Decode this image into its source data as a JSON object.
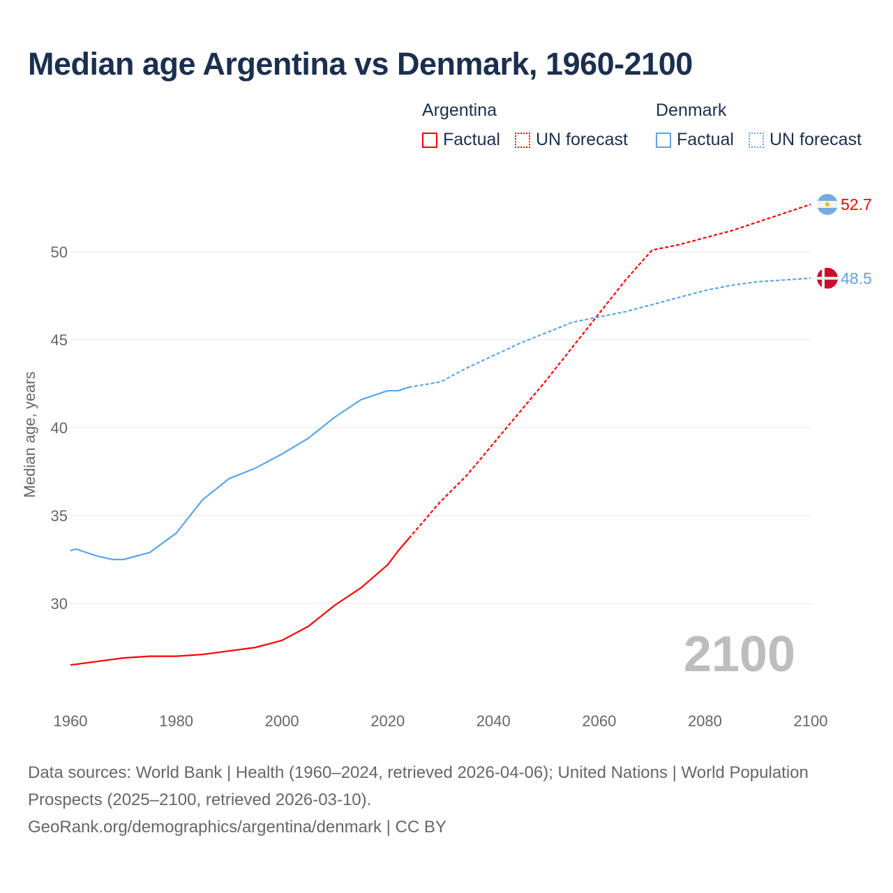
{
  "title": "Median age Argentina vs Denmark, 1960-2100",
  "legend": {
    "groups": [
      {
        "name": "Argentina",
        "color": "#ff0000",
        "factual": "Factual",
        "forecast": "UN forecast"
      },
      {
        "name": "Denmark",
        "color": "#5ba4ea",
        "factual": "Factual",
        "forecast": "UN forecast"
      }
    ]
  },
  "year_watermark": "2100",
  "footer": {
    "line1": "Data sources: World Bank | Health (1960–2024, retrieved 2026-04-06); United Nations | World Population Prospects (2025–2100, retrieved 2026-03-10).",
    "line2": "GeoRank.org/demographics/argentina/denmark | CC BY"
  },
  "chart_data": {
    "type": "line",
    "title": "Median age Argentina vs Denmark, 1960-2100",
    "xlabel": "",
    "ylabel": "Median age, years",
    "xlim": [
      1960,
      2100
    ],
    "ylim": [
      25,
      54.5
    ],
    "xticks": [
      "1960",
      "1980",
      "2000",
      "2020",
      "2040",
      "2060",
      "2080",
      "2100"
    ],
    "yticks": [
      "30",
      "35",
      "40",
      "45",
      "50"
    ],
    "grid": true,
    "legend_position": "top-right",
    "series": [
      {
        "name": "Argentina",
        "color": "#ff0000",
        "end_label": "52.7",
        "factual": {
          "x": [
            1960,
            1965,
            1970,
            1975,
            1980,
            1985,
            1990,
            1995,
            2000,
            2005,
            2010,
            2015,
            2020,
            2022,
            2024
          ],
          "y": [
            26.5,
            26.7,
            26.9,
            27.0,
            27.0,
            27.1,
            27.3,
            27.5,
            27.9,
            28.7,
            29.9,
            30.9,
            32.2,
            33.0,
            33.7
          ]
        },
        "forecast": {
          "x": [
            2024,
            2030,
            2035,
            2040,
            2045,
            2050,
            2055,
            2060,
            2065,
            2070,
            2075,
            2080,
            2085,
            2090,
            2095,
            2100
          ],
          "y": [
            33.7,
            35.8,
            37.3,
            39.1,
            40.9,
            42.7,
            44.6,
            46.5,
            48.4,
            50.1,
            50.4,
            50.8,
            51.2,
            51.7,
            52.2,
            52.7
          ]
        }
      },
      {
        "name": "Denmark",
        "color": "#5ba4ea",
        "end_label": "48.5",
        "factual": {
          "x": [
            1960,
            1961,
            1965,
            1968,
            1970,
            1975,
            1980,
            1985,
            1990,
            1995,
            2000,
            2005,
            2010,
            2015,
            2020,
            2022,
            2024
          ],
          "y": [
            33.0,
            33.1,
            32.7,
            32.5,
            32.5,
            32.9,
            34.0,
            35.9,
            37.1,
            37.7,
            38.5,
            39.4,
            40.6,
            41.6,
            42.1,
            42.1,
            42.3
          ]
        },
        "forecast": {
          "x": [
            2024,
            2030,
            2035,
            2040,
            2045,
            2050,
            2055,
            2060,
            2065,
            2070,
            2075,
            2080,
            2085,
            2090,
            2095,
            2100
          ],
          "y": [
            42.3,
            42.6,
            43.4,
            44.1,
            44.8,
            45.4,
            46.0,
            46.3,
            46.6,
            47.0,
            47.4,
            47.8,
            48.1,
            48.3,
            48.4,
            48.5
          ]
        }
      }
    ]
  }
}
